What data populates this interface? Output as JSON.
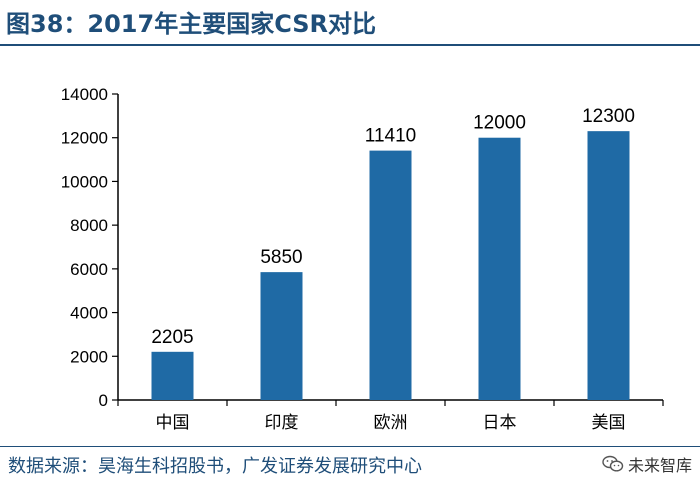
{
  "title": "图38：2017年主要国家CSR对比",
  "source": "数据来源：昊海生科招股书，广发证券发展研究中心",
  "watermark": {
    "icon": "wechat-icon",
    "label": "未来智库"
  },
  "colors": {
    "bar": "#1f6aa5",
    "accent": "#1f4e79",
    "axis": "#000000"
  },
  "chart_data": {
    "type": "bar",
    "categories": [
      "中国",
      "印度",
      "欧洲",
      "日本",
      "美国"
    ],
    "values": [
      2205,
      5850,
      11410,
      12000,
      12300
    ],
    "data_labels": [
      "2205",
      "5850",
      "11410",
      "12000",
      "12300"
    ],
    "yticks": [
      0,
      2000,
      4000,
      6000,
      8000,
      10000,
      12000,
      14000
    ],
    "ylim": [
      0,
      14000
    ],
    "grid": false,
    "legend": "none"
  }
}
